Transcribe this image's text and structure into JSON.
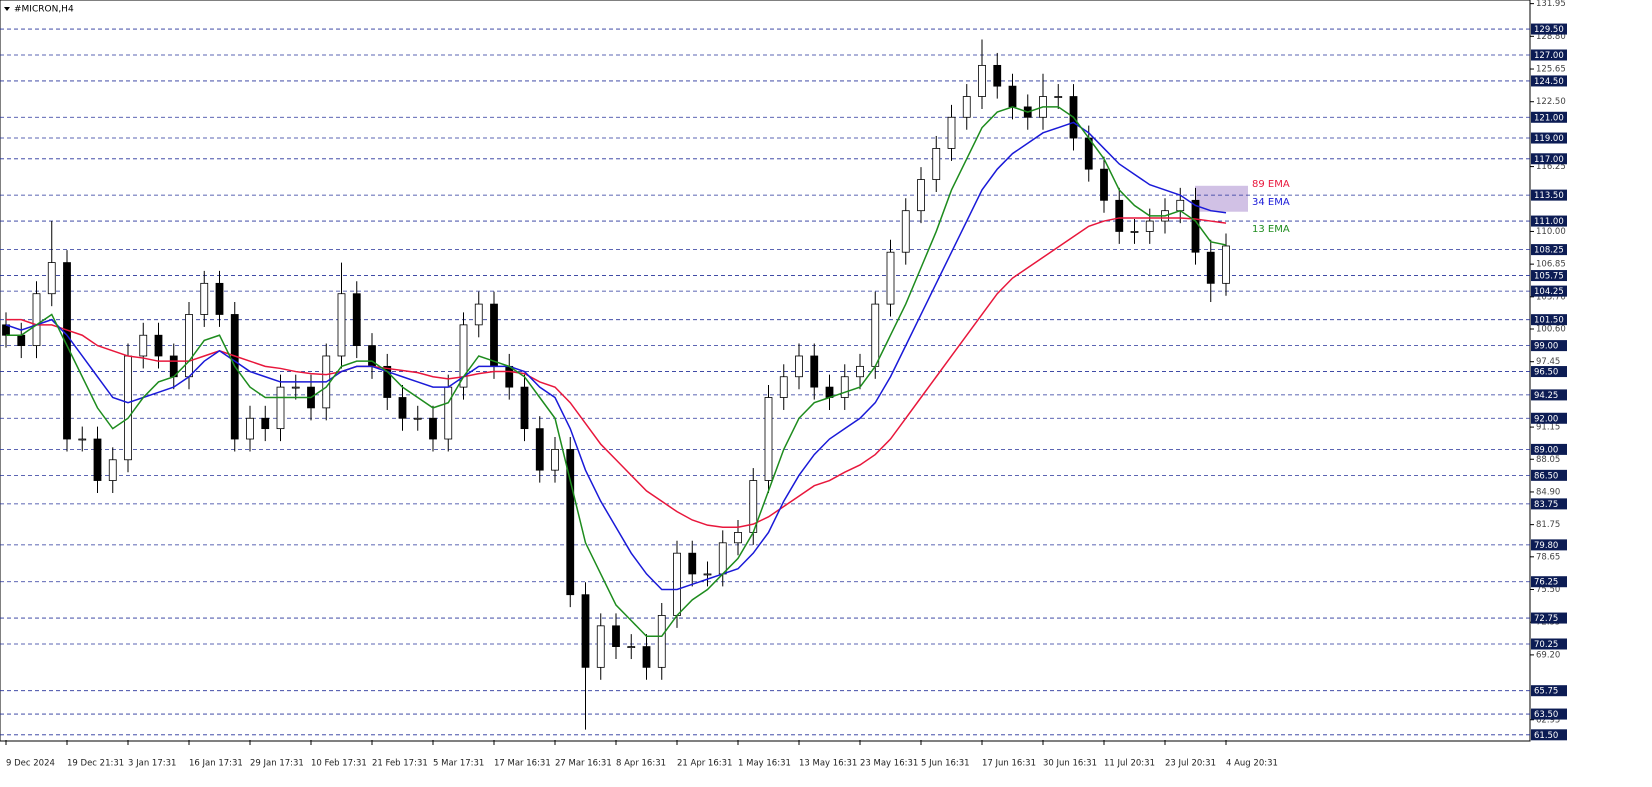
{
  "chart_data": {
    "type": "candlestick",
    "title": "#MICRON,H4",
    "categories": [
      "9 Dec 2024",
      null,
      null,
      null,
      "19 Dec 21:31",
      null,
      null,
      null,
      "3 Jan 17:31",
      null,
      null,
      null,
      "16 Jan 17:31",
      null,
      null,
      null,
      "29 Jan 17:31",
      null,
      null,
      null,
      "10 Feb 17:31",
      null,
      null,
      null,
      "21 Feb 17:31",
      null,
      null,
      null,
      "5 Mar 17:31",
      null,
      null,
      null,
      "17 Mar 16:31",
      null,
      null,
      null,
      "27 Mar 16:31",
      null,
      null,
      null,
      "8 Apr 16:31",
      null,
      null,
      null,
      "21 Apr 16:31",
      null,
      null,
      null,
      "1 May 16:31",
      null,
      null,
      null,
      "13 May 16:31",
      null,
      null,
      null,
      "23 May 16:31",
      null,
      null,
      null,
      "5 Jun 16:31",
      null,
      null,
      null,
      "17 Jun 16:31",
      null,
      null,
      null,
      "30 Jun 16:31",
      null,
      null,
      null,
      "11 Jul 20:31",
      null,
      null,
      null,
      "23 Jul 20:31",
      null,
      null,
      null,
      "4 Aug 20:31"
    ],
    "open": [
      101,
      100,
      99,
      104,
      107,
      90,
      90,
      86,
      88,
      98,
      100,
      98,
      96,
      102,
      105,
      102,
      90,
      92,
      91,
      95,
      95,
      93,
      98,
      104,
      99,
      97,
      94,
      92,
      92,
      90,
      95,
      101,
      103,
      97,
      95,
      91,
      87,
      89,
      75,
      68,
      72,
      70,
      70,
      68,
      73,
      79,
      77,
      77,
      80,
      81,
      86,
      94,
      96,
      98,
      95,
      94,
      96,
      97,
      103,
      108,
      112,
      115,
      118,
      121,
      123,
      126,
      124,
      122,
      121,
      123,
      123,
      119,
      116,
      113,
      110,
      110,
      111,
      112,
      113,
      108,
      105
    ],
    "high": [
      102.2,
      101.2,
      105.2,
      111,
      108.2,
      91.2,
      91.2,
      89.2,
      99.2,
      101.2,
      101.2,
      99.2,
      103.2,
      106.2,
      106.2,
      103.2,
      93.2,
      93.2,
      96.2,
      96.2,
      96.2,
      99.2,
      107,
      105.2,
      100.2,
      98.2,
      95.2,
      93.2,
      93.2,
      96.2,
      102.2,
      104.2,
      104.2,
      98.2,
      96.2,
      92.2,
      90.2,
      90.2,
      76.2,
      73.2,
      73.2,
      71.2,
      71.2,
      74.2,
      80.2,
      80.2,
      78.2,
      81.2,
      82.2,
      87.2,
      95.2,
      97.2,
      99.2,
      99.2,
      96.2,
      97.2,
      98.2,
      104.2,
      109.2,
      113.2,
      116.2,
      119.2,
      122.2,
      124.2,
      128.5,
      127.2,
      125.2,
      123.2,
      125.2,
      124.2,
      124.2,
      120.2,
      117.2,
      114.2,
      111.2,
      112.2,
      113.2,
      114.2,
      114.2,
      109.2,
      109.8
    ],
    "low": [
      98.8,
      97.8,
      97.8,
      102.8,
      88.8,
      88.8,
      84.8,
      84.8,
      86.8,
      96.8,
      96.8,
      94.8,
      94.8,
      100.8,
      100.8,
      88.8,
      88.8,
      89.8,
      89.8,
      93.8,
      91.8,
      91.8,
      96.8,
      97.8,
      95.8,
      92.8,
      90.8,
      90.8,
      88.8,
      88.8,
      93.8,
      99.8,
      95.8,
      93.8,
      89.8,
      85.8,
      85.8,
      73.8,
      62,
      66.8,
      68.8,
      68.8,
      66.8,
      66.8,
      71.8,
      75.8,
      75.8,
      75.8,
      78.8,
      79.8,
      84.8,
      92.8,
      94.8,
      93.8,
      92.8,
      92.8,
      94.8,
      95.8,
      101.8,
      106.8,
      110.8,
      113.8,
      116.8,
      119.8,
      121.8,
      122.8,
      120.8,
      119.8,
      119.8,
      121.8,
      117.8,
      114.8,
      111.8,
      108.8,
      108.8,
      108.8,
      109.8,
      110.8,
      106.8,
      103.2,
      103.8
    ],
    "close": [
      100,
      99,
      104,
      107,
      90,
      90,
      86,
      88,
      98,
      100,
      98,
      96,
      102,
      105,
      102,
      90,
      92,
      91,
      95,
      95,
      93,
      98,
      104,
      99,
      97,
      94,
      92,
      92,
      90,
      95,
      101,
      103,
      97,
      95,
      91,
      87,
      89,
      75,
      68,
      72,
      70,
      70,
      68,
      73,
      79,
      77,
      77,
      80,
      81,
      86,
      94,
      96,
      98,
      95,
      94,
      96,
      97,
      103,
      108,
      112,
      115,
      118,
      121,
      123,
      126,
      124,
      122,
      121,
      123,
      123,
      119,
      116,
      113,
      110,
      110,
      111,
      112,
      113,
      108,
      105,
      108.6
    ],
    "series": [
      {
        "name": "89 EMA",
        "color": "#e8173c",
        "values": [
          101.5,
          101.5,
          101,
          101,
          100.5,
          100,
          99,
          98.5,
          98,
          97.8,
          97.5,
          97.5,
          97.5,
          98,
          98.5,
          98,
          97.5,
          97,
          96.8,
          96.5,
          96.3,
          96.2,
          96.5,
          97,
          97,
          96.8,
          96.6,
          96.4,
          96,
          95.8,
          96,
          96.3,
          96.5,
          96.5,
          96.3,
          95.5,
          95,
          93.5,
          91.5,
          89.5,
          88,
          86.5,
          85,
          84,
          83,
          82.2,
          81.7,
          81.5,
          81.5,
          81.8,
          82.5,
          83.5,
          84.5,
          85.5,
          86,
          86.8,
          87.5,
          88.5,
          90,
          92,
          94,
          96,
          98,
          100,
          102,
          104,
          105.5,
          106.5,
          107.5,
          108.5,
          109.5,
          110.5,
          111,
          111.3,
          111.3,
          111.3,
          111.3,
          111.3,
          111.2,
          111,
          110.8
        ]
      },
      {
        "name": "34 EMA",
        "color": "#1a1ad8",
        "values": [
          101,
          100.5,
          101,
          101.5,
          100,
          98,
          96,
          94,
          93.5,
          94,
          94.5,
          95,
          96,
          97.5,
          98.5,
          97.5,
          96.5,
          96,
          95.5,
          95.5,
          95.5,
          95.5,
          96.5,
          97,
          97,
          96.5,
          96,
          95.5,
          95,
          95,
          96,
          97,
          97,
          97,
          96.5,
          95,
          94,
          91,
          87,
          84,
          81.5,
          79,
          77,
          75.5,
          75.5,
          76,
          76.5,
          77,
          77.5,
          79,
          81,
          84,
          86.5,
          88.5,
          90,
          91,
          92,
          93.5,
          96,
          99,
          102,
          105,
          108,
          111,
          114,
          116,
          117.5,
          118.5,
          119.5,
          120,
          120.5,
          119.5,
          118,
          116.5,
          115.5,
          114.5,
          114,
          113.5,
          112.5,
          112,
          111.8
        ]
      },
      {
        "name": "13 EMA",
        "color": "#1e8c1e",
        "values": [
          100,
          100,
          101,
          102,
          99,
          96,
          93,
          91,
          92,
          94,
          95.5,
          96,
          97.5,
          99.5,
          100,
          97,
          95,
          94,
          94,
          94,
          94,
          95,
          97,
          97.5,
          97.5,
          96.5,
          95,
          94,
          93,
          93.5,
          96,
          98,
          97.5,
          97,
          96,
          94,
          92,
          86,
          80,
          77,
          74,
          72.5,
          71,
          71,
          73,
          74.5,
          75.5,
          77,
          78.5,
          81,
          85,
          89,
          92,
          93.5,
          94,
          94.5,
          95,
          97,
          100,
          103,
          106.5,
          110,
          114,
          117,
          120,
          121.5,
          122,
          121.5,
          122,
          122,
          121,
          119,
          117,
          114,
          112.5,
          111.5,
          111.5,
          112,
          111,
          109,
          108.7
        ]
      }
    ],
    "zone": [
      111.9,
      114.4
    ],
    "ylim": [
      61.0,
      132.3
    ],
    "yticks": [
      {
        "value": 131.95,
        "label": "131.95"
      },
      {
        "value": 128.8,
        "label": "128.80"
      },
      {
        "value": 125.65,
        "label": "125.65"
      },
      {
        "value": 122.5,
        "label": "122.50"
      },
      {
        "value": 116.25,
        "label": "116.25"
      },
      {
        "value": 110,
        "label": "110.00"
      },
      {
        "value": 106.85,
        "label": "106.85"
      },
      {
        "value": 103.7,
        "label": "103.70"
      },
      {
        "value": 100.6,
        "label": "100.60"
      },
      {
        "value": 97.45,
        "label": "97.45"
      },
      {
        "value": 91.15,
        "label": "91.15"
      },
      {
        "value": 88.05,
        "label": "88.05"
      },
      {
        "value": 84.9,
        "label": "84.90"
      },
      {
        "value": 81.75,
        "label": "81.75"
      },
      {
        "value": 78.65,
        "label": "78.65"
      },
      {
        "value": 75.5,
        "label": "75.50"
      },
      {
        "value": 72.35,
        "label": "72.35"
      },
      {
        "value": 69.2,
        "label": "69.20"
      },
      {
        "value": 62.95,
        "label": "62.95"
      }
    ],
    "levels": [
      {
        "value": 129.5,
        "label": "129.50"
      },
      {
        "value": 127,
        "label": "127.00"
      },
      {
        "value": 124.5,
        "label": "124.50"
      },
      {
        "value": 121,
        "label": "121.00"
      },
      {
        "value": 119,
        "label": "119.00"
      },
      {
        "value": 117,
        "label": "117.00"
      },
      {
        "value": 113.5,
        "label": "113.50"
      },
      {
        "value": 111,
        "label": "111.00"
      },
      {
        "value": 108.25,
        "label": "108.25"
      },
      {
        "value": 105.75,
        "label": "105.75"
      },
      {
        "value": 104.25,
        "label": "104.25"
      },
      {
        "value": 101.5,
        "label": "101.50"
      },
      {
        "value": 99,
        "label": "99.00"
      },
      {
        "value": 96.5,
        "label": "96.50"
      },
      {
        "value": 94.25,
        "label": "94.25"
      },
      {
        "value": 92,
        "label": "92.00"
      },
      {
        "value": 89,
        "label": "89.00"
      },
      {
        "value": 86.5,
        "label": "86.50"
      },
      {
        "value": 83.75,
        "label": "83.75"
      },
      {
        "value": 79.8,
        "label": "79.80"
      },
      {
        "value": 76.25,
        "label": "76.25"
      },
      {
        "value": 72.75,
        "label": "72.75"
      },
      {
        "value": 70.25,
        "label": "70.25"
      },
      {
        "value": 65.75,
        "label": "65.75"
      },
      {
        "value": 63.5,
        "label": "63.50"
      },
      {
        "value": 61.5,
        "label": "61.50"
      }
    ]
  }
}
